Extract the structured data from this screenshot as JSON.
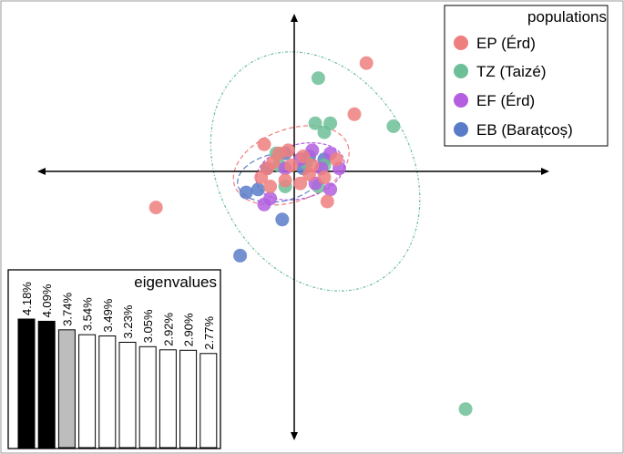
{
  "chart_data": {
    "type": "scatter",
    "title": "",
    "xlabel": "",
    "ylabel": "",
    "xlim": [
      -10,
      10
    ],
    "ylim": [
      -10,
      5
    ],
    "grid": false,
    "legend": {
      "title": "populations",
      "placement": "top-right"
    },
    "series": [
      {
        "name": "EP (Érd)",
        "color": "#ef7f7f",
        "points": [
          [
            2.4,
            3.6
          ],
          [
            2.0,
            1.9
          ],
          [
            -1.0,
            0.9
          ],
          [
            -4.6,
            -1.2
          ],
          [
            1.0,
            -0.2
          ],
          [
            1.1,
            -1.0
          ],
          [
            -0.5,
            0.6
          ],
          [
            -0.1,
            0.2
          ],
          [
            0.3,
            0.5
          ],
          [
            -0.9,
            0.1
          ],
          [
            -0.7,
            0.3
          ],
          [
            0.5,
            -0.1
          ],
          [
            -0.3,
            -0.3
          ],
          [
            -0.8,
            -0.5
          ],
          [
            0.6,
            0.2
          ],
          [
            -0.2,
            0.7
          ],
          [
            -1.1,
            -0.2
          ],
          [
            0.2,
            -0.4
          ],
          [
            1.4,
            0.4
          ]
        ],
        "ellipse": {
          "cx": -0.1,
          "cy": 0.2,
          "rx": 2.0,
          "ry": 1.2,
          "angle": -20
        }
      },
      {
        "name": "TZ (Taizé)",
        "color": "#6dbf98",
        "points": [
          [
            0.8,
            3.1
          ],
          [
            1.2,
            1.6
          ],
          [
            3.3,
            1.5
          ],
          [
            0.7,
            1.6
          ],
          [
            1.0,
            1.3
          ],
          [
            5.7,
            -7.9
          ],
          [
            -0.6,
            0.6
          ],
          [
            0.4,
            0.3
          ],
          [
            0.8,
            -0.5
          ],
          [
            -0.3,
            -0.5
          ],
          [
            1.0,
            0.2
          ],
          [
            -0.5,
            0.2
          ]
        ],
        "ellipse": {
          "cx": 0.7,
          "cy": 0.0,
          "rx": 3.2,
          "ry": 4.2,
          "angle": -30
        }
      },
      {
        "name": "EF (Érd)",
        "color": "#b35fe0",
        "points": [
          [
            1.2,
            0.6
          ],
          [
            1.5,
            0.1
          ],
          [
            1.2,
            -0.6
          ],
          [
            -1.0,
            -1.1
          ],
          [
            -0.8,
            -0.9
          ],
          [
            0.7,
            -0.4
          ],
          [
            0.6,
            0.7
          ],
          [
            0.2,
            0.4
          ],
          [
            -0.3,
            0.1
          ],
          [
            0.9,
            0.1
          ]
        ],
        "ellipse": {
          "cx": 0.2,
          "cy": 0.0,
          "rx": 1.5,
          "ry": 0.9,
          "angle": -15
        }
      },
      {
        "name": "EB (Barațcoș)",
        "color": "#5a7cc8",
        "points": [
          [
            -1.6,
            -0.7
          ],
          [
            -0.4,
            -1.6
          ],
          [
            -1.8,
            -2.8
          ],
          [
            -0.9,
            0.1
          ],
          [
            -1.2,
            -0.6
          ],
          [
            0.5,
            0.5
          ],
          [
            -0.3,
            0.6
          ],
          [
            0.3,
            0.1
          ],
          [
            1.0,
            0.4
          ]
        ],
        "ellipse": {
          "cx": -0.5,
          "cy": -0.2,
          "rx": 1.4,
          "ry": 0.8,
          "angle": -10
        }
      }
    ],
    "eigenvalues": {
      "title": "eigenvalues",
      "labels": [
        "4.18%",
        "4.09%",
        "3.74%",
        "3.54%",
        "3.49%",
        "3.23%",
        "3.05%",
        "2.92%",
        "2.90%",
        "2.77%"
      ],
      "values": [
        4.18,
        4.09,
        3.74,
        3.54,
        3.49,
        3.23,
        3.05,
        2.92,
        2.9,
        2.77
      ],
      "fills": [
        "#000000",
        "#000000",
        "#bdbdbd",
        "#ffffff",
        "#ffffff",
        "#ffffff",
        "#ffffff",
        "#ffffff",
        "#ffffff",
        "#ffffff"
      ]
    }
  }
}
